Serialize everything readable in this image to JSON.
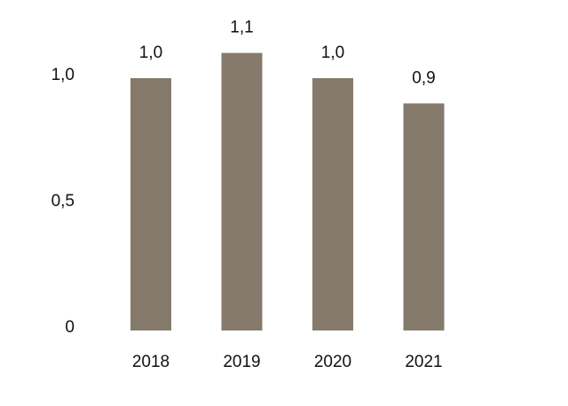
{
  "chart_data": {
    "type": "bar",
    "categories": [
      "2018",
      "2019",
      "2020",
      "2021"
    ],
    "values": [
      1.0,
      1.1,
      1.0,
      0.9
    ],
    "data_labels": [
      "1,0",
      "1,1",
      "1,0",
      "0,9"
    ],
    "y_ticks": [
      {
        "value": 0,
        "label": "0"
      },
      {
        "value": 0.5,
        "label": "0,5"
      },
      {
        "value": 1.0,
        "label": "1,0"
      }
    ],
    "ylim": [
      0,
      1.0
    ],
    "title": "",
    "xlabel": "",
    "ylabel": "",
    "grid": false,
    "legend": "none",
    "bar_color": "#857a6b"
  }
}
